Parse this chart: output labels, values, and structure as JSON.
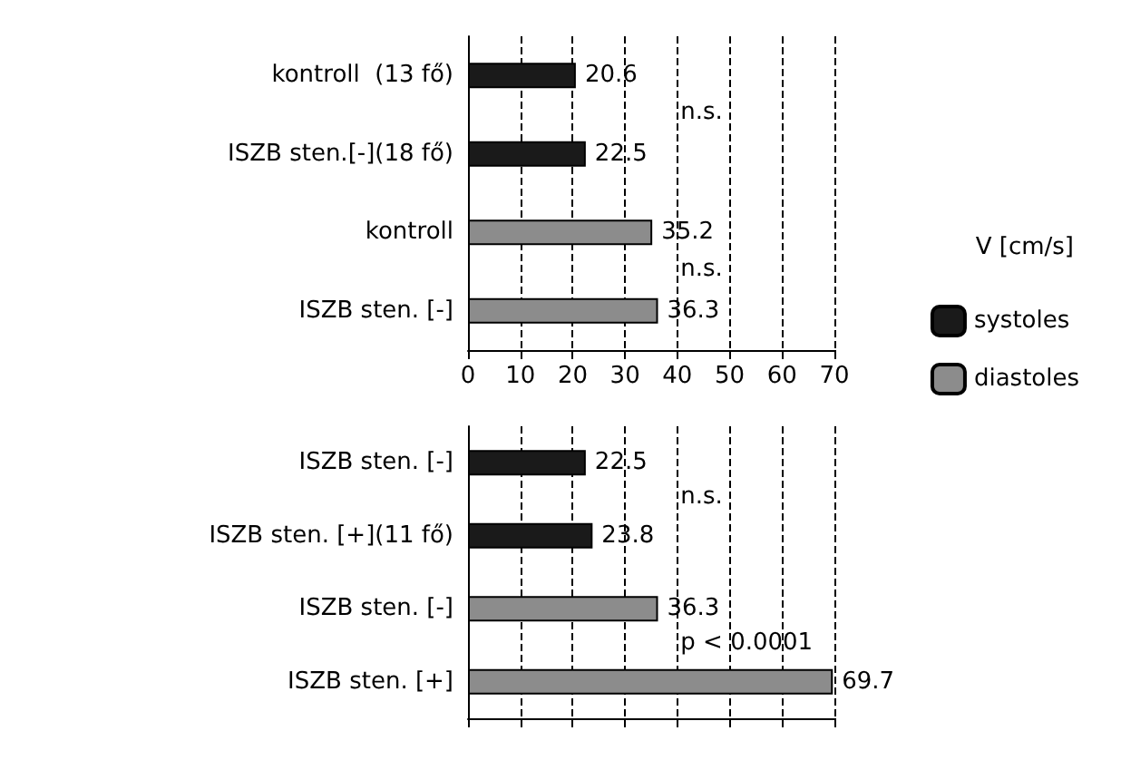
{
  "chart_data": [
    {
      "type": "bar",
      "orientation": "horizontal",
      "categories": [
        "kontroll  (13 fő)",
        "ISZB sten.[-](18 fő)",
        "kontroll",
        "ISZB sten. [-]"
      ],
      "series": [
        {
          "name": "systoles",
          "color": "#1a1a1a",
          "values": [
            20.6,
            22.5,
            null,
            null
          ]
        },
        {
          "name": "diastoles",
          "color": "#8c8c8c",
          "values": [
            null,
            null,
            35.2,
            36.3
          ]
        }
      ],
      "xlim": [
        0,
        70
      ],
      "xticks": [
        0,
        10,
        20,
        30,
        40,
        50,
        60,
        70
      ],
      "grid": "x",
      "data_labels": true,
      "legend": "bottom right",
      "legend_title": "V [cm/s]",
      "annotations": [
        "n.s.",
        "n.s."
      ]
    },
    {
      "type": "bar",
      "orientation": "horizontal",
      "categories": [
        "ISZB sten. [-]",
        "ISZB sten. [+](11 fő)",
        "ISZB sten. [-]",
        "ISZB sten. [+]"
      ],
      "series": [
        {
          "color": "#1a1a1a",
          "values": [
            22.5,
            23.8,
            null,
            null
          ]
        },
        {
          "color": "#8c8c8c",
          "values": [
            null,
            null,
            36.3,
            69.7
          ]
        }
      ],
      "xlim": [
        0,
        70
      ],
      "xticks": [
        0,
        10,
        20,
        30,
        40,
        50,
        60,
        70
      ],
      "grid": "x",
      "data_labels": true,
      "tick_labels": "y",
      "annotations": [
        "n.s.",
        "p < 0.0001"
      ]
    }
  ]
}
